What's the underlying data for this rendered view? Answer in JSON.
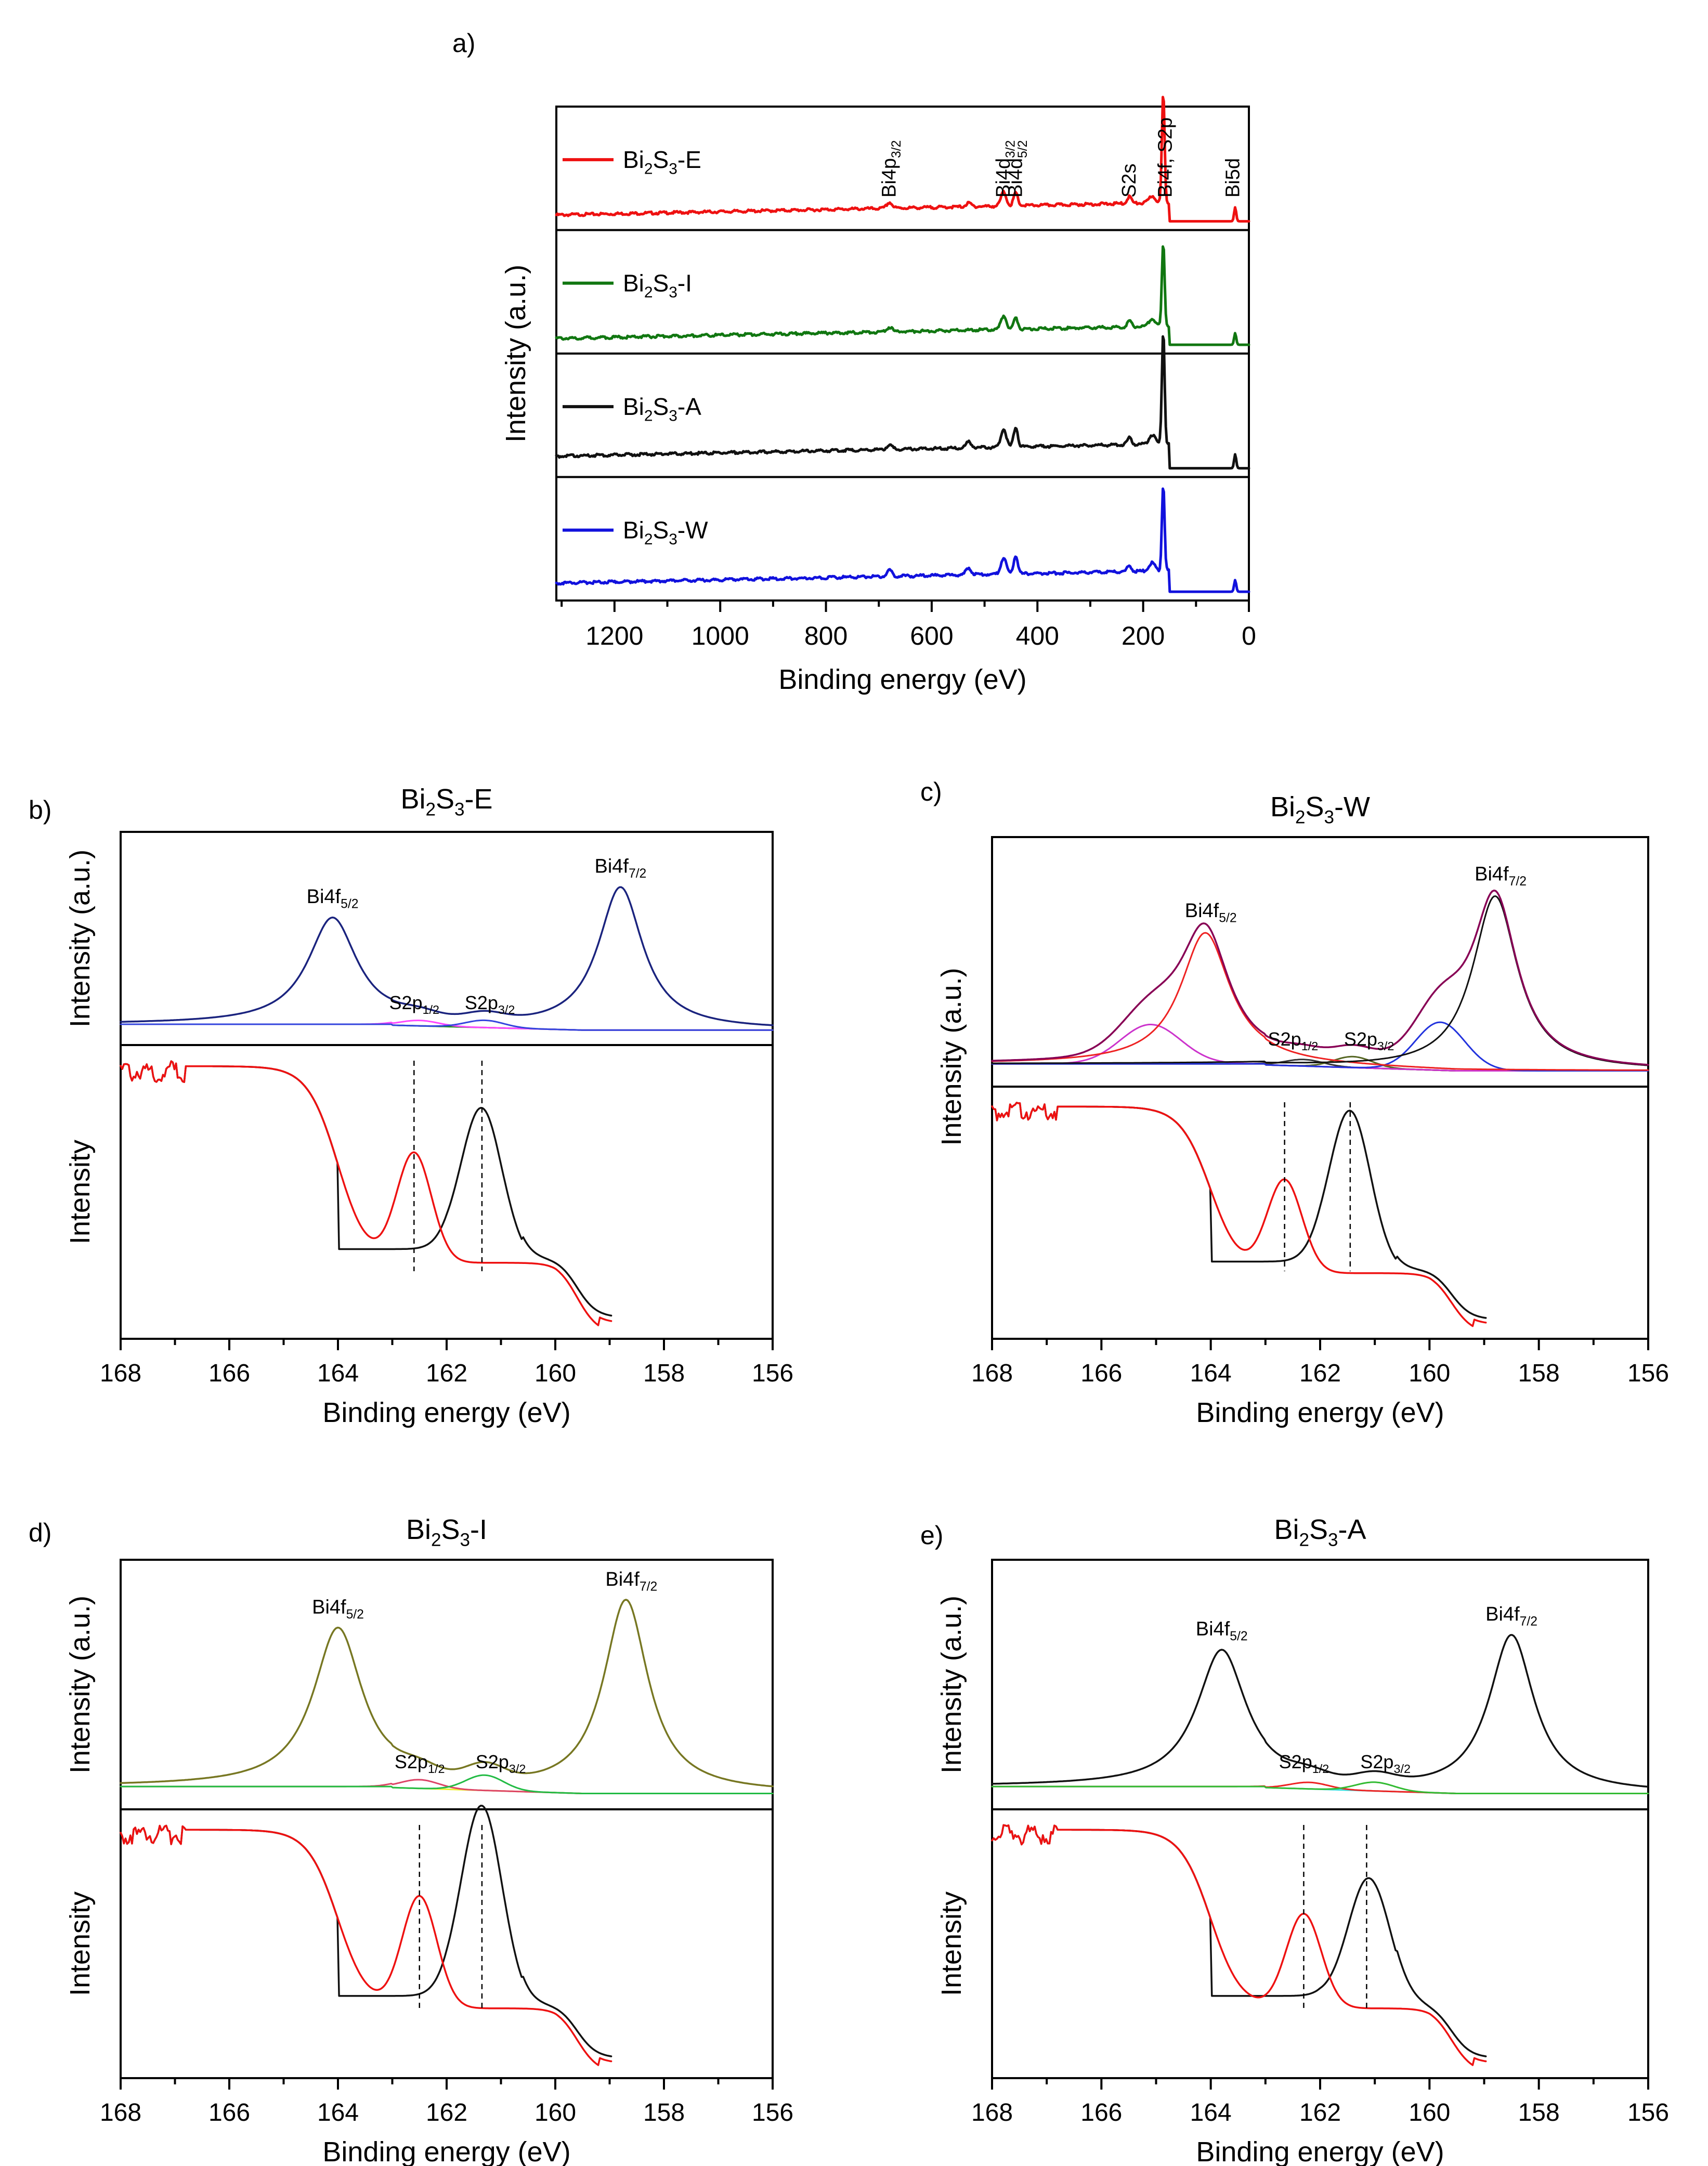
{
  "chart_data": [
    {
      "id": "a",
      "type": "line",
      "panel_label": "a)",
      "xlabel": "Binding energy (eV)",
      "ylabel": "Intensity (a.u.)",
      "xlim": [
        1310,
        0
      ],
      "xticks": [
        1200,
        1000,
        800,
        600,
        400,
        200,
        0
      ],
      "series": [
        {
          "name": "Bi2S3-E",
          "label_main": "Bi",
          "label_sub1": "2",
          "label_mid": "S",
          "label_sub2": "3",
          "label_tail": "-E",
          "color": "#ee1111",
          "baseline": [
            0.1,
            0.3
          ],
          "peaks": [
            [
              680,
              0.05,
              5
            ],
            [
              530,
              0.03,
              5
            ],
            [
              464,
              0.12,
              5
            ],
            [
              441,
              0.11,
              4
            ],
            [
              226,
              0.06,
              4
            ],
            [
              183,
              0.06,
              6
            ],
            [
              162,
              0.95,
              2.5
            ],
            [
              26,
              0.12,
              2
            ]
          ]
        },
        {
          "name": "Bi2S3-I",
          "label_main": "Bi",
          "label_sub1": "2",
          "label_mid": "S",
          "label_sub2": "3",
          "label_tail": "-I",
          "color": "#117711",
          "baseline": [
            0.1,
            0.3
          ],
          "peaks": [
            [
              680,
              0.04,
              5
            ],
            [
              464,
              0.12,
              5
            ],
            [
              441,
              0.1,
              4
            ],
            [
              226,
              0.05,
              4
            ],
            [
              183,
              0.07,
              6
            ],
            [
              162,
              0.72,
              2.5
            ],
            [
              26,
              0.1,
              2
            ]
          ]
        },
        {
          "name": "Bi2S3-A",
          "label_main": "Bi",
          "label_sub1": "2",
          "label_mid": "S",
          "label_sub2": "3",
          "label_tail": "-A",
          "color": "#111111",
          "baseline": [
            0.15,
            0.35
          ],
          "peaks": [
            [
              680,
              0.04,
              5
            ],
            [
              530,
              0.05,
              5
            ],
            [
              464,
              0.16,
              5
            ],
            [
              441,
              0.17,
              4
            ],
            [
              226,
              0.06,
              4
            ],
            [
              183,
              0.08,
              6
            ],
            [
              162,
              0.98,
              2.5
            ],
            [
              26,
              0.12,
              2
            ]
          ]
        },
        {
          "name": "Bi2S3-W",
          "label_main": "Bi",
          "label_sub1": "2",
          "label_mid": "S",
          "label_sub2": "3",
          "label_tail": "-W",
          "color": "#1111dd",
          "baseline": [
            0.12,
            0.32
          ],
          "peaks": [
            [
              680,
              0.05,
              5
            ],
            [
              530,
              0.06,
              5
            ],
            [
              464,
              0.14,
              5
            ],
            [
              441,
              0.16,
              4
            ],
            [
              226,
              0.05,
              4
            ],
            [
              183,
              0.07,
              6
            ],
            [
              162,
              0.75,
              2.5
            ],
            [
              26,
              0.1,
              2
            ]
          ]
        }
      ],
      "peak_labels": [
        {
          "main": "Bi4p",
          "sub": "3/2",
          "x": 680
        },
        {
          "main": "Bi4d",
          "sub": "3/2",
          "x": 464
        },
        {
          "main": "Bi4d",
          "sub": "5/2",
          "x": 441
        },
        {
          "main": "S2s",
          "sub": "",
          "x": 226
        },
        {
          "main": "Bi4f, S2p",
          "sub": "",
          "x": 158
        },
        {
          "main": "Bi5d",
          "sub": "",
          "x": 30
        }
      ]
    },
    {
      "id": "b",
      "type": "line",
      "panel_label": "b)",
      "title_main": "Bi",
      "title_sub1": "2",
      "title_mid": "S",
      "title_sub2": "3",
      "title_tail": "-E",
      "xlabel": "Binding energy (eV)",
      "ylabel_top": "Intensity (a.u.)",
      "ylabel_bottom": "Intensity",
      "xlim": [
        168,
        156
      ],
      "xticks": [
        168,
        166,
        164,
        162,
        160,
        158,
        156
      ],
      "fit_colors": {
        "envelope": "#1a237e",
        "background": "#228b22",
        "s_comp_1": "#ff44ff",
        "s_comp_2": "#3344dd",
        "extra": "#2255ff"
      },
      "fit": {
        "bi52": [
          164.1,
          0.58
        ],
        "bi72": [
          158.8,
          0.78
        ],
        "s12": [
          162.5,
          0.03
        ],
        "s32": [
          161.3,
          0.04
        ],
        "extra": null
      },
      "deriv": {
        "red_center": 162.6,
        "black_center": 161.35,
        "red_height": 0.4,
        "black_height": 0.55
      },
      "vlines": [
        162.6,
        161.35
      ],
      "annotations": [
        {
          "main": "Bi4f",
          "sub": "5/2",
          "x": 164.1
        },
        {
          "main": "Bi4f",
          "sub": "7/2",
          "x": 158.8
        },
        {
          "main": "S2p",
          "sub": "1/2",
          "x": 162.5
        },
        {
          "main": "S2p",
          "sub": "3/2",
          "x": 161.3
        }
      ]
    },
    {
      "id": "c",
      "type": "line",
      "panel_label": "c)",
      "title_main": "Bi",
      "title_sub1": "2",
      "title_mid": "S",
      "title_sub2": "3",
      "title_tail": "-W",
      "xlabel": "Binding energy (eV)",
      "ylabel": "Intensity (a.u.)",
      "xlim": [
        168,
        156
      ],
      "xticks": [
        168,
        166,
        164,
        162,
        160,
        158,
        156
      ],
      "fit_colors": {
        "envelope": "#880055",
        "background": "#cc33cc",
        "s_comp_1": "#333333",
        "s_comp_2": "#556622",
        "extra": "#2233dd"
      },
      "fit": {
        "bi52": [
          164.1,
          0.6
        ],
        "bi72": [
          158.8,
          0.8
        ],
        "s12": [
          162.3,
          0.03
        ],
        "s32": [
          161.4,
          0.05
        ],
        "extra": [
          [
            165.1,
            0.18
          ],
          [
            159.8,
            0.22
          ]
        ]
      },
      "deriv": {
        "red_center": 162.65,
        "black_center": 161.45,
        "red_height": 0.4,
        "black_height": 0.68
      },
      "vlines": [
        162.65,
        161.45
      ],
      "annotations": [
        {
          "main": "Bi4f",
          "sub": "5/2",
          "x": 164.0
        },
        {
          "main": "Bi4f",
          "sub": "7/2",
          "x": 158.7
        },
        {
          "main": "S2p",
          "sub": "1/2",
          "x": 162.4
        },
        {
          "main": "S2p",
          "sub": "3/2",
          "x": 161.2
        }
      ]
    },
    {
      "id": "d",
      "type": "line",
      "panel_label": "d)",
      "title_main": "Bi",
      "title_sub1": "2",
      "title_mid": "S",
      "title_sub2": "3",
      "title_tail": "-I",
      "xlabel": "Binding energy (eV)",
      "ylabel_top": "Intensity (a.u.)",
      "ylabel_bottom": "Intensity",
      "xlim": [
        168,
        156
      ],
      "xticks": [
        168,
        166,
        164,
        162,
        160,
        158,
        156
      ],
      "fit_colors": {
        "envelope": "#777722",
        "background": "#eeee33",
        "s_comp_1": "#dd4466",
        "s_comp_2": "#22bb44",
        "extra": "#3366dd"
      },
      "fit": {
        "bi52": [
          164.0,
          0.72
        ],
        "bi72": [
          158.7,
          0.88
        ],
        "s12": [
          162.5,
          0.04
        ],
        "s32": [
          161.3,
          0.07
        ],
        "extra": null
      },
      "deriv": {
        "red_center": 162.5,
        "black_center": 161.35,
        "red_height": 0.45,
        "black_height": 0.8
      },
      "vlines": [
        162.5,
        161.35
      ],
      "annotations": [
        {
          "main": "Bi4f",
          "sub": "5/2",
          "x": 164.0
        },
        {
          "main": "Bi4f",
          "sub": "7/2",
          "x": 158.6
        },
        {
          "main": "S2p",
          "sub": "1/2",
          "x": 162.4
        },
        {
          "main": "S2p",
          "sub": "3/2",
          "x": 161.1
        }
      ]
    },
    {
      "id": "e",
      "type": "line",
      "panel_label": "e)",
      "title_main": "Bi",
      "title_sub1": "2",
      "title_mid": "S",
      "title_sub2": "3",
      "title_tail": "-A",
      "xlabel": "Binding energy (eV)",
      "ylabel_top": "Intensity (a.u.)",
      "ylabel_bottom": "Intensity",
      "xlim": [
        168,
        156
      ],
      "xticks": [
        168,
        166,
        164,
        162,
        160,
        158,
        156
      ],
      "fit_colors": {
        "envelope": "#111111",
        "background": "#33dddd",
        "s_comp_1": "#ee2222",
        "s_comp_2": "#33bb33",
        "extra": "#2233bb"
      },
      "fit": {
        "bi52": [
          163.8,
          0.62
        ],
        "bi72": [
          158.5,
          0.72
        ],
        "s12": [
          162.2,
          0.03
        ],
        "s32": [
          161.0,
          0.04
        ],
        "extra": null
      },
      "deriv": {
        "red_center": 162.3,
        "black_center": 161.1,
        "red_height": 0.38,
        "black_height": 0.52
      },
      "vlines": [
        162.3,
        161.15
      ],
      "annotations": [
        {
          "main": "Bi4f",
          "sub": "5/2",
          "x": 163.8
        },
        {
          "main": "Bi4f",
          "sub": "7/2",
          "x": 158.5
        },
        {
          "main": "S2p",
          "sub": "1/2",
          "x": 162.2
        },
        {
          "main": "S2p",
          "sub": "3/2",
          "x": 160.9
        }
      ]
    }
  ]
}
